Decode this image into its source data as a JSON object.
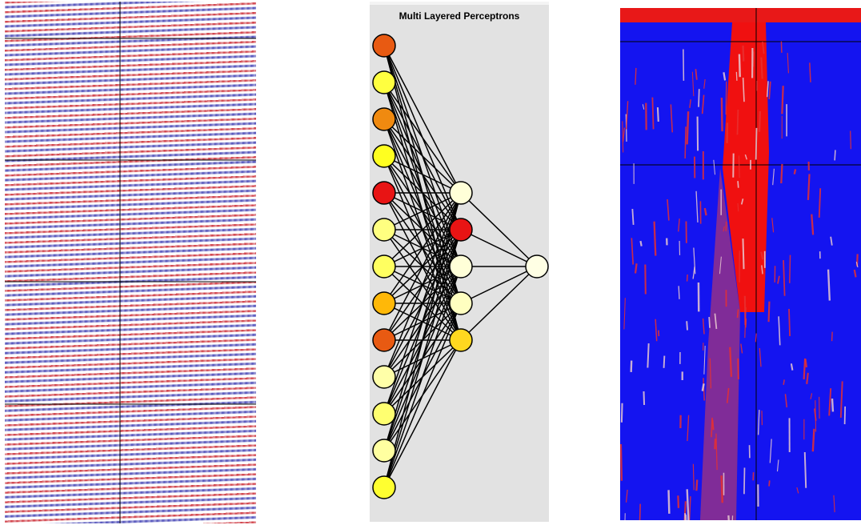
{
  "diagram": {
    "title": "Multi Layered Perceptrons"
  }
}
